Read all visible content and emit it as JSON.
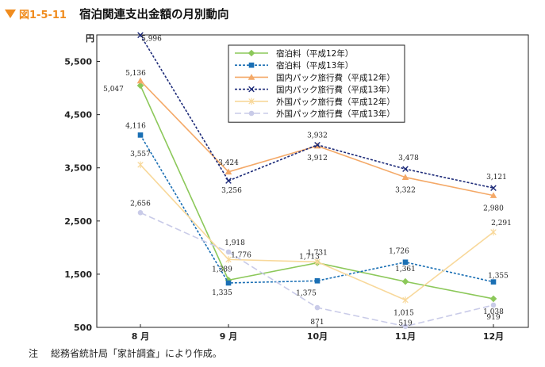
{
  "figure_label": "図1-5-11",
  "footnote": {
    "mark": "注",
    "text": "総務省統計局「家計調査」により作成。"
  },
  "chart_data": {
    "type": "line",
    "title": "宿泊関連支出金額の月別動向",
    "ylabel": "円",
    "xlabel": "",
    "ylim": [
      500,
      6000
    ],
    "yticks": [
      500,
      1500,
      2500,
      3500,
      4500,
      5500
    ],
    "ytick_labels": [
      "500",
      "1,500",
      "2,500",
      "3,500",
      "4,500",
      "5,500"
    ],
    "categories": [
      "8 月",
      "9 月",
      "10月",
      "11月",
      "12月"
    ],
    "grid": false,
    "legend_position": "top-right",
    "series": [
      {
        "name": "宿泊料（平成12年）",
        "color": "#8cc85a",
        "dash": "solid",
        "marker": "diamond",
        "values": [
          5047,
          1389,
          1713,
          1361,
          1038
        ],
        "labels": [
          "5,047",
          "1,389",
          "1,713",
          "1,361",
          "1,038"
        ]
      },
      {
        "name": "宿泊料（平成13年）",
        "color": "#1a6fb4",
        "dash": "dotted",
        "marker": "square",
        "values": [
          4116,
          1335,
          1375,
          1726,
          1355
        ],
        "labels": [
          "4,116",
          "1,335",
          "1,375",
          "1,726",
          "1,355"
        ]
      },
      {
        "name": "国内パック旅行費（平成12年）",
        "color": "#f4a968",
        "dash": "solid",
        "marker": "triangle",
        "values": [
          5136,
          3424,
          3912,
          3322,
          2980
        ],
        "labels": [
          "5,136",
          "3,424",
          "3,912",
          "3,322",
          "2,980"
        ]
      },
      {
        "name": "国内パック旅行費（平成13年）",
        "color": "#1c2a78",
        "dash": "dotted",
        "marker": "x",
        "values": [
          5996,
          3256,
          3932,
          3478,
          3121
        ],
        "labels": [
          "5,996",
          "3,256",
          "3,932",
          "3,478",
          "3,121"
        ]
      },
      {
        "name": "外国パック旅行費（平成12年）",
        "color": "#f8d89a",
        "dash": "solid",
        "marker": "star",
        "values": [
          3557,
          1776,
          1731,
          1015,
          2291
        ],
        "labels": [
          "3,557",
          "1,776",
          "1,731",
          "1,015",
          "2,291"
        ]
      },
      {
        "name": "外国パック旅行費（平成13年）",
        "color": "#c9cbe8",
        "dash": "dashed",
        "marker": "circle",
        "values": [
          2656,
          1918,
          871,
          519,
          919
        ],
        "labels": [
          "2,656",
          "1,918",
          "871",
          "519",
          "919"
        ]
      }
    ]
  }
}
